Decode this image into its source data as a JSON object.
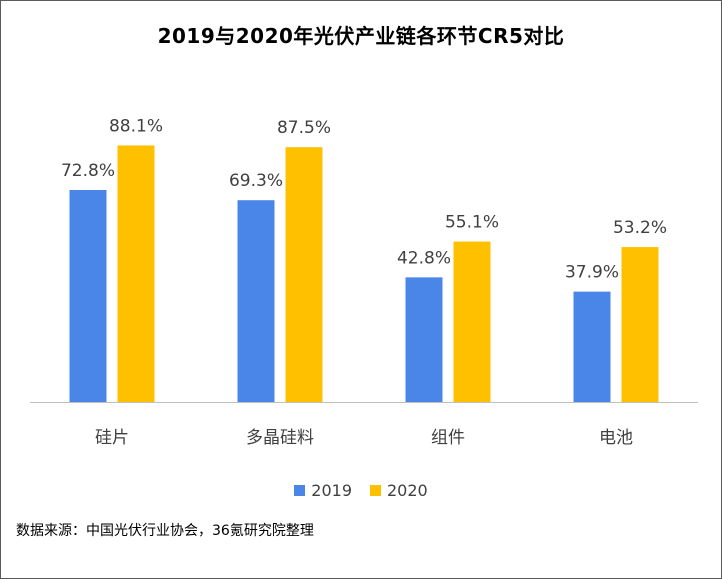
{
  "chart_data": {
    "type": "bar",
    "title": "2019与2020年光伏产业链各环节CR5对比",
    "categories": [
      "硅片",
      "多晶硅料",
      "组件",
      "电池"
    ],
    "series": [
      {
        "name": "2019",
        "values": [
          72.8,
          69.3,
          42.8,
          37.9
        ],
        "labels": [
          "72.8%",
          "69.3%",
          "42.8%",
          "37.9%"
        ],
        "color": "#4a86e8"
      },
      {
        "name": "2020",
        "values": [
          88.1,
          87.5,
          55.1,
          53.2
        ],
        "labels": [
          "88.1%",
          "87.5%",
          "55.1%",
          "53.2%"
        ],
        "color": "#ffc000"
      }
    ],
    "ylim": [
      0,
      100
    ],
    "grid": false,
    "legend_position": "bottom"
  },
  "source_note": "数据来源：中国光伏行业协会，36氪研究院整理"
}
